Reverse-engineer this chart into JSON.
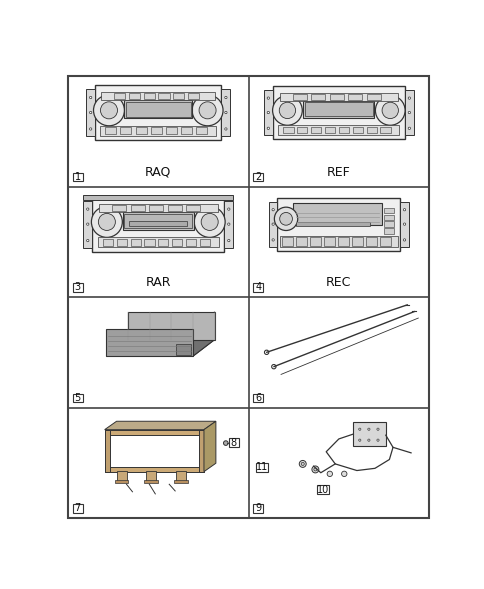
{
  "background_color": "#ffffff",
  "border_color": "#444444",
  "line_color": "#333333",
  "grid_rows": 4,
  "grid_cols": 2,
  "cells": [
    {
      "row": 0,
      "col": 0,
      "label": "RAQ",
      "number": "1"
    },
    {
      "row": 0,
      "col": 1,
      "label": "REF",
      "number": "2"
    },
    {
      "row": 1,
      "col": 0,
      "label": "RAR",
      "number": "3"
    },
    {
      "row": 1,
      "col": 1,
      "label": "REC",
      "number": "4"
    },
    {
      "row": 2,
      "col": 0,
      "label": "",
      "number": "5"
    },
    {
      "row": 2,
      "col": 1,
      "label": "",
      "number": "6"
    },
    {
      "row": 3,
      "col": 0,
      "label": "",
      "number": "7"
    },
    {
      "row": 3,
      "col": 1,
      "label": "",
      "number": "9"
    }
  ],
  "label_fontsize": 9,
  "number_fontsize": 7
}
